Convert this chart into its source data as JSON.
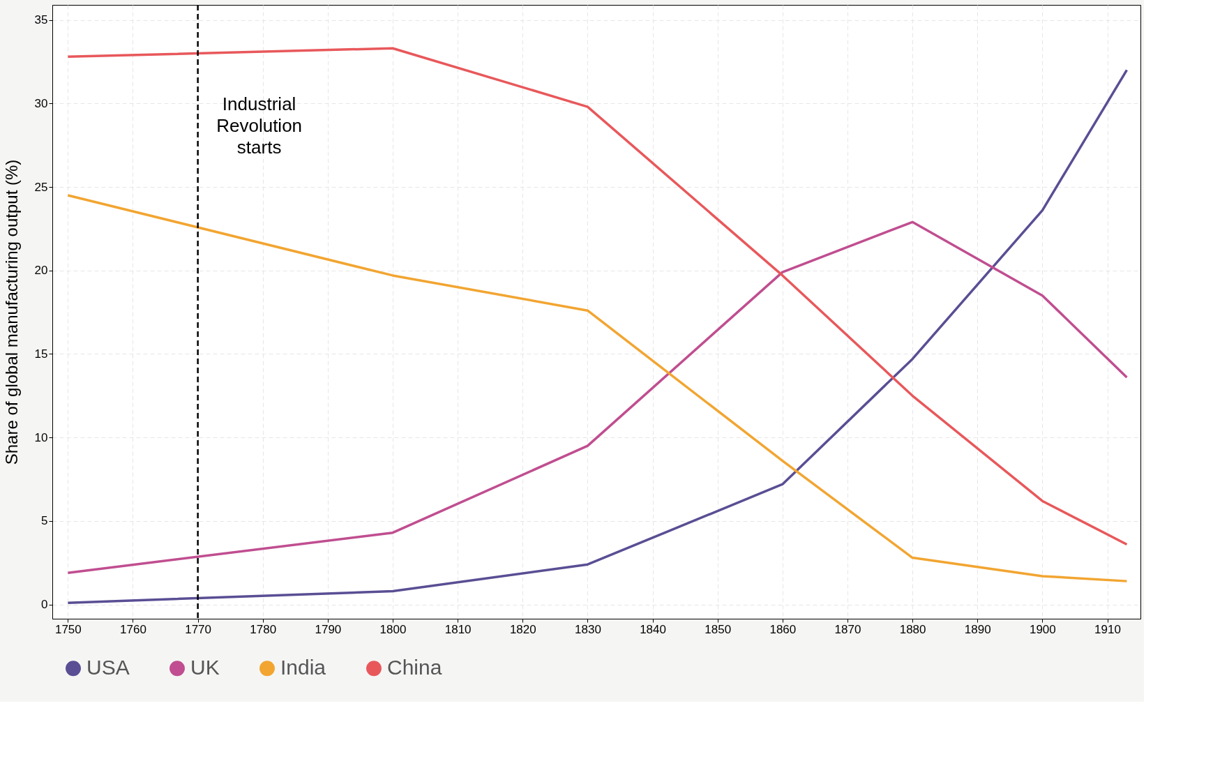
{
  "chart_data": {
    "type": "line",
    "ylabel": "Share of global manufacturing output (%)",
    "x": [
      1750,
      1800,
      1830,
      1860,
      1880,
      1900,
      1913
    ],
    "series": [
      {
        "name": "USA",
        "color": "#5a4e94",
        "values": [
          0.1,
          0.8,
          2.4,
          7.2,
          14.7,
          23.6,
          32.0
        ]
      },
      {
        "name": "UK",
        "color": "#c04e90",
        "values": [
          1.9,
          4.3,
          9.5,
          19.9,
          22.9,
          18.5,
          13.6
        ]
      },
      {
        "name": "India",
        "color": "#f2a531",
        "values": [
          24.5,
          19.7,
          17.6,
          8.6,
          2.8,
          1.7,
          1.4
        ]
      },
      {
        "name": "China",
        "color": "#e8585b",
        "values": [
          32.8,
          33.3,
          29.8,
          19.7,
          12.5,
          6.2,
          3.6
        ]
      }
    ],
    "xlim": [
      1747.6,
      1915.1
    ],
    "ylim": [
      -0.85,
      35.9
    ],
    "xticks": [
      1750,
      1760,
      1770,
      1780,
      1790,
      1800,
      1810,
      1820,
      1830,
      1840,
      1850,
      1860,
      1870,
      1880,
      1890,
      1900,
      1910
    ],
    "yticks": [
      0,
      5,
      10,
      15,
      20,
      25,
      30,
      35
    ],
    "ref_lines": [
      {
        "axis": "x",
        "value": 1770,
        "label": "Industrial Revolution starts",
        "color": "#000000",
        "line_style": "dashed"
      }
    ],
    "grid": true,
    "legend": "bottom",
    "line_style": "solid",
    "marker": "none"
  }
}
